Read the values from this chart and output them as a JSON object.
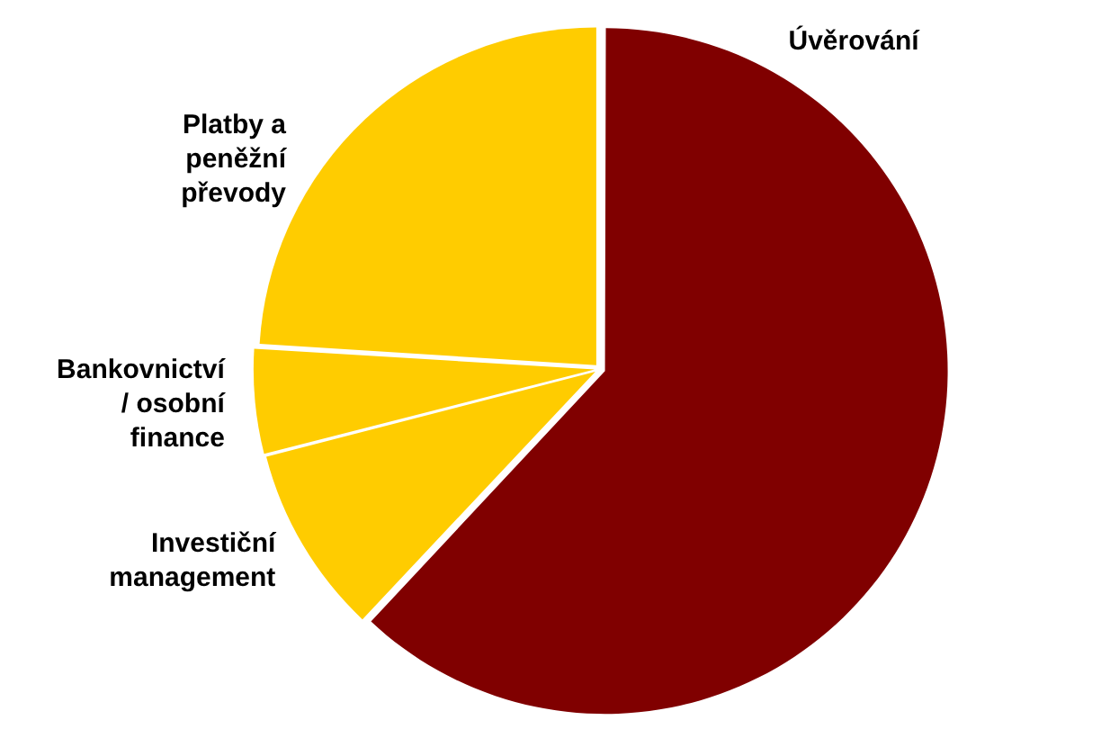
{
  "chart_data": {
    "type": "pie",
    "categories": [
      "Úvěrování",
      "Investiční management",
      "Bankovnictví / osobní finance",
      "Platby a peněžní převody"
    ],
    "values": [
      62,
      9,
      5,
      24
    ],
    "colors": [
      "#800000",
      "#ffcc00",
      "#ffcc00",
      "#ffcc00"
    ],
    "legend": false
  }
}
